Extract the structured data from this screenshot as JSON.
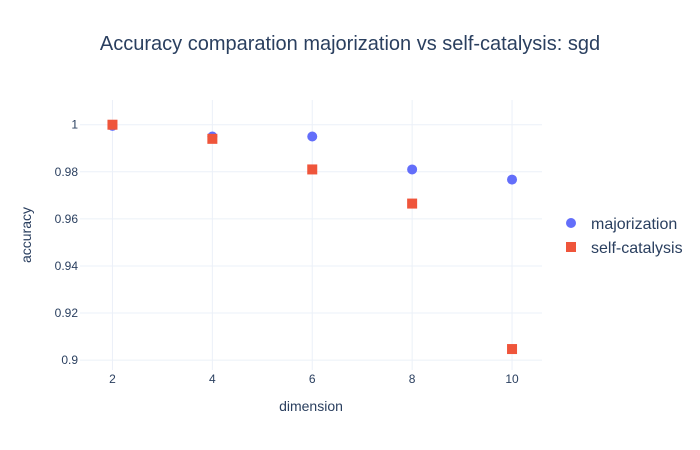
{
  "chart_data": {
    "type": "scatter",
    "title": "Accuracy comparation majorization vs self-catalysis: sgd",
    "xlabel": "dimension",
    "ylabel": "accuracy",
    "x": [
      2,
      4,
      6,
      8,
      10
    ],
    "xlim": [
      1.35,
      10.6
    ],
    "ylim": [
      0.8958,
      1.0105
    ],
    "xticks": [
      "2",
      "4",
      "6",
      "8",
      "10"
    ],
    "yticks": [
      "0.9",
      "0.92",
      "0.94",
      "0.96",
      "0.98",
      "1"
    ],
    "grid": true,
    "legend_position": "right",
    "series": [
      {
        "name": "majorization",
        "marker": "circle",
        "color": "#636efa",
        "values": [
          0.9995,
          0.995,
          0.995,
          0.981,
          0.9767
        ]
      },
      {
        "name": "self-catalysis",
        "marker": "square",
        "color": "#ef553b",
        "values": [
          1.0,
          0.994,
          0.981,
          0.9665,
          0.9047
        ]
      }
    ]
  }
}
